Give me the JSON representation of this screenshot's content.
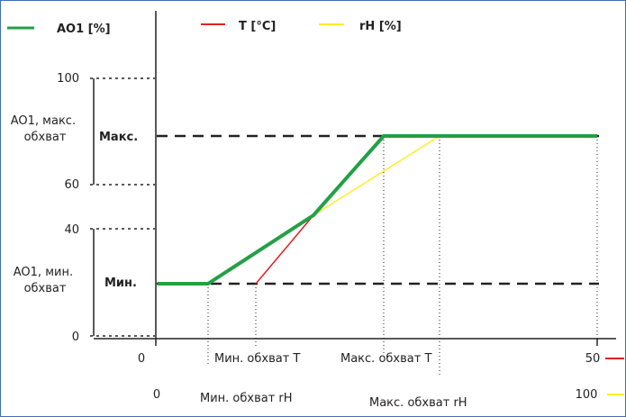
{
  "legend": {
    "ao1": "AO1 [%]",
    "t": "T [°C]",
    "rh": "rH [%]"
  },
  "colors": {
    "ao1": "#22a045",
    "t": "#e02020",
    "rh": "#ffee22",
    "axis": "#222222",
    "frame": "#3f6fb0"
  },
  "y_axis": {
    "ticks": [
      "100",
      "60",
      "40",
      "0"
    ],
    "max_range_label": "AO1, макс. обхват",
    "min_range_label": "AO1, мин. обхват",
    "max_label": "Макс.",
    "min_label": "Мин."
  },
  "x_axis_t": {
    "start": "0",
    "end": "50",
    "min_label": "Мин. обхват T",
    "max_label": "Макс. обхват T"
  },
  "x_axis_rh": {
    "start": "0",
    "end": "100",
    "min_label": "Мин. обхват rH",
    "max_label": "Макс. обхват rH"
  }
}
